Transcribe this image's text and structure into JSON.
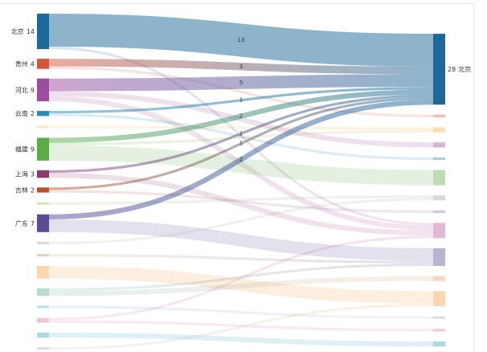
{
  "chart_data": {
    "type": "sankey",
    "nodes_left": [
      {
        "name": "北京",
        "value": 14,
        "color": "#1d6a9a"
      },
      {
        "name": "贵州",
        "value": 4,
        "color": "#d4553f"
      },
      {
        "name": "河北",
        "value": 9,
        "color": "#9b4e9c"
      },
      {
        "name": "云南",
        "value": 2,
        "color": "#2a8bb0"
      },
      {
        "value": 1,
        "color": "#f2c64a"
      },
      {
        "name": "福建",
        "value": 9,
        "color": "#5cad4a"
      },
      {
        "name": "上海",
        "value": 3,
        "color": "#8a3b72"
      },
      {
        "name": "吉林",
        "value": 2,
        "color": "#b4532e"
      },
      {
        "value": 1,
        "color": "#8cc26a"
      },
      {
        "name": "广东",
        "value": 7,
        "color": "#5a4b92"
      },
      {
        "value": 1,
        "color": "#a8a8a8"
      },
      {
        "value": 1,
        "color": "#b89a58"
      },
      {
        "value": 5,
        "color": "#f0a040"
      },
      {
        "value": 3,
        "color": "#5aa888"
      },
      {
        "value": 1,
        "color": "#68aede"
      },
      {
        "value": 2,
        "color": "#d67fa0"
      },
      {
        "value": 2,
        "color": "#3aa6bc"
      },
      {
        "value": 1,
        "color": "#a0b8c8"
      }
    ],
    "nodes_right": [
      {
        "name": "北京",
        "value": 28,
        "color": "#1d6a9a"
      },
      {
        "value": 1,
        "color": "#d4553f"
      },
      {
        "value": 2,
        "color": "#f0b040"
      },
      {
        "value": 2,
        "color": "#9b4e9c"
      },
      {
        "value": 1,
        "color": "#2a8bb0"
      },
      {
        "value": 6,
        "color": "#5cad4a"
      },
      {
        "value": 2,
        "color": "#a8a8a8"
      },
      {
        "value": 1,
        "color": "#8f78c0"
      },
      {
        "value": 6,
        "color": "#b5599f"
      },
      {
        "value": 7,
        "color": "#5a4b92"
      },
      {
        "value": 2,
        "color": "#e8a070"
      },
      {
        "value": 6,
        "color": "#f0a040"
      },
      {
        "value": 1,
        "color": "#b0b0b0"
      },
      {
        "value": 1,
        "color": "#d67fa0"
      },
      {
        "value": 2,
        "color": "#3aa6bc"
      }
    ],
    "links": [
      {
        "source": 0,
        "target": 0,
        "value": 13,
        "emphasized": true
      },
      {
        "source": 1,
        "target": 0,
        "value": 3,
        "emphasized": true
      },
      {
        "source": 2,
        "target": 0,
        "value": 5,
        "emphasized": true
      },
      {
        "source": 3,
        "target": 0,
        "value": 1,
        "emphasized": true
      },
      {
        "source": 5,
        "target": 0,
        "value": 2,
        "emphasized": true
      },
      {
        "source": 6,
        "target": 0,
        "value": 1,
        "emphasized": true
      },
      {
        "source": 7,
        "target": 0,
        "value": 1,
        "emphasized": true
      },
      {
        "source": 9,
        "target": 0,
        "value": 2,
        "emphasized": true
      },
      {
        "source": 0,
        "target": 8,
        "value": 1
      },
      {
        "source": 1,
        "target": 1,
        "value": 1
      },
      {
        "source": 2,
        "target": 3,
        "value": 2
      },
      {
        "source": 2,
        "target": 8,
        "value": 2
      },
      {
        "source": 3,
        "target": 4,
        "value": 1
      },
      {
        "source": 4,
        "target": 2,
        "value": 1
      },
      {
        "source": 5,
        "target": 2,
        "value": 1
      },
      {
        "source": 5,
        "target": 5,
        "value": 6
      },
      {
        "source": 6,
        "target": 8,
        "value": 2
      },
      {
        "source": 7,
        "target": 7,
        "value": 1
      },
      {
        "source": 8,
        "target": 6,
        "value": 1
      },
      {
        "source": 9,
        "target": 9,
        "value": 5
      },
      {
        "source": 10,
        "target": 6,
        "value": 1
      },
      {
        "source": 11,
        "target": 9,
        "value": 1
      },
      {
        "source": 12,
        "target": 11,
        "value": 5
      },
      {
        "source": 13,
        "target": 9,
        "value": 1
      },
      {
        "source": 13,
        "target": 10,
        "value": 2
      },
      {
        "source": 14,
        "target": 12,
        "value": 1
      },
      {
        "source": 15,
        "target": 8,
        "value": 1
      },
      {
        "source": 15,
        "target": 13,
        "value": 1
      },
      {
        "source": 16,
        "target": 14,
        "value": 2
      },
      {
        "source": 17,
        "target": 11,
        "value": 1
      }
    ]
  }
}
